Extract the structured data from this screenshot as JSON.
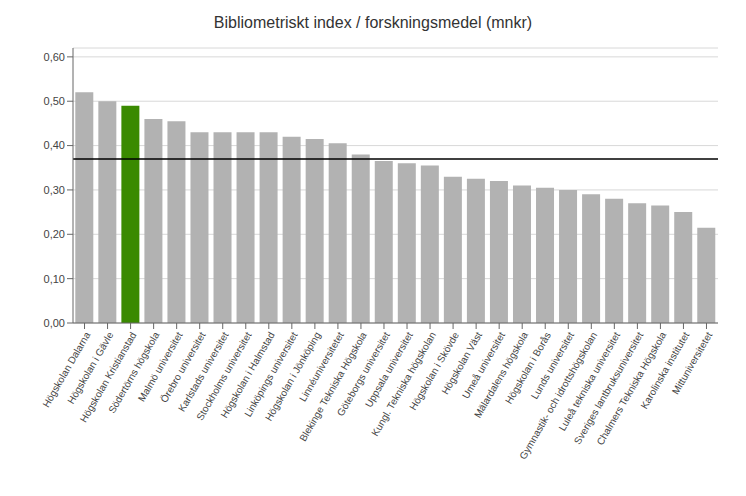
{
  "chart_data": {
    "type": "bar",
    "title": "Bibliometriskt index / forskningsmedel  (mnkr)",
    "categories": [
      "Högskolan Dalarna",
      "Högskolan i Gävle",
      "Högskolan Kristianstad",
      "Södertörns högskola",
      "Malmö universitet",
      "Örebro universitet",
      "Karlstads universitet",
      "Stockholms universitet",
      "Högskolan i Halmstad",
      "Linköpings universitet",
      "Högskolan i Jönköping",
      "Linnéuniversitetet",
      "Blekinge Tekniska Högskola",
      "Göteborgs universitet",
      "Uppsala universitet",
      "Kungl. Tekniska högskolan",
      "Högskolan i Skövde",
      "Högskolan Väst",
      "Umeå universitet",
      "Mälardalens högskola",
      "Högskolan i Borås",
      "Lunds universitet",
      "Gymnastik- och idrottshögskolan",
      "Luleå tekniska universitet",
      "Sveriges lantbruksuniversitet",
      "Chalmers Tekniska Högskola",
      "Karolinska institutet",
      "Mittuniversitetet"
    ],
    "values": [
      0.52,
      0.5,
      0.49,
      0.46,
      0.455,
      0.43,
      0.43,
      0.43,
      0.43,
      0.42,
      0.415,
      0.405,
      0.38,
      0.365,
      0.36,
      0.355,
      0.33,
      0.325,
      0.32,
      0.31,
      0.305,
      0.3,
      0.29,
      0.28,
      0.27,
      0.265,
      0.25,
      0.215
    ],
    "colors": [
      "#b2b2b2",
      "#b2b2b2",
      "#3a8a00",
      "#b2b2b2",
      "#b2b2b2",
      "#b2b2b2",
      "#b2b2b2",
      "#b2b2b2",
      "#b2b2b2",
      "#b2b2b2",
      "#b2b2b2",
      "#b2b2b2",
      "#b2b2b2",
      "#b2b2b2",
      "#b2b2b2",
      "#b2b2b2",
      "#b2b2b2",
      "#b2b2b2",
      "#b2b2b2",
      "#b2b2b2",
      "#b2b2b2",
      "#b2b2b2",
      "#b2b2b2",
      "#b2b2b2",
      "#b2b2b2",
      "#b2b2b2",
      "#b2b2b2",
      "#b2b2b2"
    ],
    "reference_line": 0.37,
    "ylim": [
      0,
      0.62
    ],
    "yticks": [
      {
        "value": 0.0,
        "label": "0,00"
      },
      {
        "value": 0.1,
        "label": "0,10"
      },
      {
        "value": 0.2,
        "label": "0,20"
      },
      {
        "value": 0.3,
        "label": "0,30"
      },
      {
        "value": 0.4,
        "label": "0,40"
      },
      {
        "value": 0.5,
        "label": "0,50"
      },
      {
        "value": 0.6,
        "label": "0,60"
      }
    ],
    "grid": true
  }
}
